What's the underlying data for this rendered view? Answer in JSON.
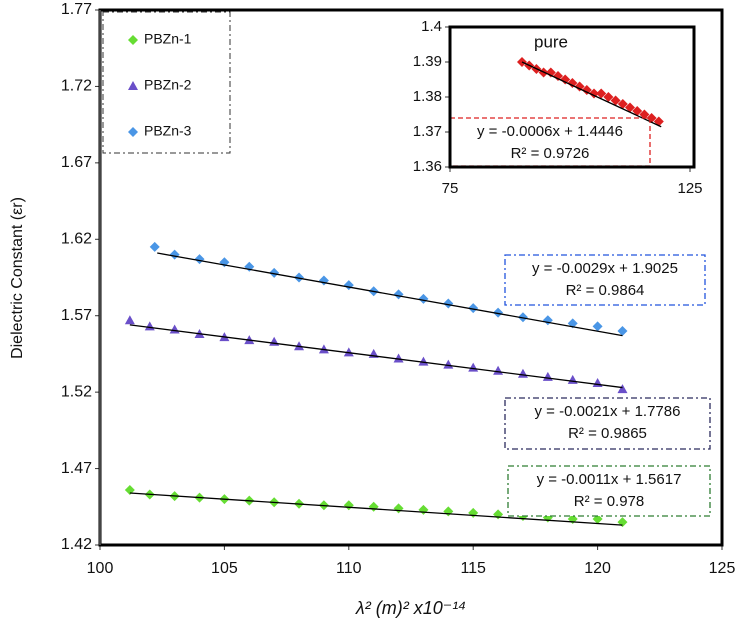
{
  "chart_data": [
    {
      "type": "scatter",
      "y_label": "Dielectric Constant (εr)",
      "x_label": "λ² (m)² x10⁻¹⁴",
      "xlim": [
        100,
        125
      ],
      "xticks": [
        100,
        105,
        110,
        115,
        120,
        125
      ],
      "ylim": [
        1.42,
        1.77
      ],
      "yticks": [
        1.42,
        1.47,
        1.52,
        1.57,
        1.62,
        1.67,
        1.72,
        1.77
      ],
      "series": [
        {
          "name": "PBZn-1",
          "color": "#66dd33",
          "marker": "diamond",
          "box_color": "#2e7d32",
          "x": [
            101.2,
            102,
            103,
            104,
            105,
            106,
            107,
            108,
            109,
            110,
            111,
            112,
            113,
            114,
            115,
            116,
            117,
            118,
            119,
            120,
            121
          ],
          "values": [
            1.456,
            1.453,
            1.452,
            1.451,
            1.45,
            1.449,
            1.448,
            1.447,
            1.446,
            1.446,
            1.445,
            1.444,
            1.443,
            1.442,
            1.441,
            1.44,
            1.439,
            1.438,
            1.437,
            1.437,
            1.435
          ],
          "trend_x": [
            101.2,
            121
          ],
          "trend_y": [
            1.454,
            1.433
          ],
          "equation": "y = -0.0011x + 1.5617",
          "r2": "R² = 0.978"
        },
        {
          "name": "PBZn-2",
          "color": "#6a4fc9",
          "marker": "triangle",
          "box_color": "#2b2b5e",
          "x": [
            101.2,
            102,
            103,
            104,
            105,
            106,
            107,
            108,
            109,
            110,
            111,
            112,
            113,
            114,
            115,
            116,
            117,
            118,
            119,
            120,
            121
          ],
          "values": [
            1.567,
            1.563,
            1.561,
            1.558,
            1.556,
            1.554,
            1.553,
            1.55,
            1.548,
            1.546,
            1.545,
            1.542,
            1.54,
            1.538,
            1.536,
            1.534,
            1.532,
            1.53,
            1.528,
            1.526,
            1.522
          ],
          "trend_x": [
            101.2,
            121
          ],
          "trend_y": [
            1.564,
            1.523
          ],
          "equation": "y = -0.0021x + 1.7786",
          "r2": "R² = 0.9865"
        },
        {
          "name": "PBZn-3",
          "color": "#4a96e6",
          "marker": "diamond",
          "box_color": "#2255dd",
          "x": [
            102.2,
            103,
            104,
            105,
            106,
            107,
            108,
            109,
            110,
            111,
            112,
            113,
            114,
            115,
            116,
            117,
            118,
            119,
            120,
            121
          ],
          "values": [
            1.615,
            1.61,
            1.607,
            1.605,
            1.602,
            1.598,
            1.595,
            1.593,
            1.59,
            1.586,
            1.584,
            1.581,
            1.578,
            1.575,
            1.572,
            1.569,
            1.567,
            1.565,
            1.563,
            1.56
          ],
          "trend_x": [
            102.3,
            121
          ],
          "trend_y": [
            1.611,
            1.557
          ],
          "equation": "y = -0.0029x + 1.9025",
          "r2": "R² = 0.9864"
        }
      ]
    },
    {
      "type": "scatter",
      "title": "pure",
      "xlim": [
        75,
        125
      ],
      "xticks": [
        75,
        125
      ],
      "ylim": [
        1.36,
        1.4
      ],
      "yticks": [
        1.36,
        1.37,
        1.38,
        1.39,
        1.4
      ],
      "series": [
        {
          "color": "#dd2020",
          "marker": "diamond",
          "box_color": "#dd2020",
          "x": [
            90,
            91.5,
            93,
            94.5,
            96,
            97.5,
            99,
            100.5,
            102,
            103.5,
            105,
            106.5,
            108,
            109.5,
            111,
            112.5,
            114,
            115.5,
            117,
            118.5
          ],
          "values": [
            1.39,
            1.389,
            1.388,
            1.387,
            1.387,
            1.386,
            1.385,
            1.384,
            1.383,
            1.382,
            1.381,
            1.381,
            1.38,
            1.379,
            1.378,
            1.377,
            1.376,
            1.375,
            1.374,
            1.373
          ],
          "trend_x": [
            90,
            119
          ],
          "trend_y": [
            1.39,
            1.3715
          ],
          "equation": "y = -0.0006x + 1.4446",
          "r2": "R² = 0.9726"
        }
      ]
    }
  ]
}
